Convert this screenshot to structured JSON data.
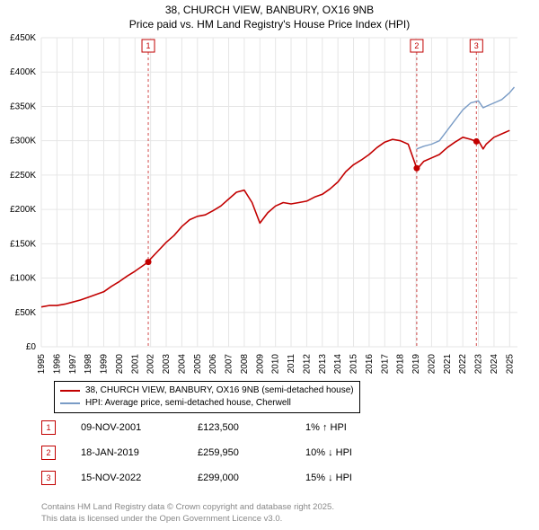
{
  "title": {
    "line1": "38, CHURCH VIEW, BANBURY, OX16 9NB",
    "line2": "Price paid vs. HM Land Registry's House Price Index (HPI)"
  },
  "chart": {
    "type": "line",
    "background_color": "#ffffff",
    "grid_color": "#e6e6e6",
    "axis_color": "#000000",
    "tick_fontsize": 10,
    "xlim": [
      1995,
      2025.5
    ],
    "ylim": [
      0,
      450000
    ],
    "ytick_step": 50000,
    "yticks": [
      "£0",
      "£50K",
      "£100K",
      "£150K",
      "£200K",
      "£250K",
      "£300K",
      "£350K",
      "£400K",
      "£450K"
    ],
    "xticks": [
      1995,
      1996,
      1997,
      1998,
      1999,
      2000,
      2001,
      2002,
      2003,
      2004,
      2005,
      2006,
      2007,
      2008,
      2009,
      2010,
      2011,
      2012,
      2013,
      2014,
      2015,
      2016,
      2017,
      2018,
      2019,
      2020,
      2021,
      2022,
      2023,
      2024,
      2025
    ],
    "series": {
      "property": {
        "label": "38, CHURCH VIEW, BANBURY, OX16 9NB (semi-detached house)",
        "color": "#c20000",
        "line_width": 1.6,
        "data": [
          [
            1995,
            58000
          ],
          [
            1995.5,
            60000
          ],
          [
            1996,
            60000
          ],
          [
            1996.5,
            62000
          ],
          [
            1997,
            65000
          ],
          [
            1997.5,
            68000
          ],
          [
            1998,
            72000
          ],
          [
            1998.5,
            76000
          ],
          [
            1999,
            80000
          ],
          [
            1999.5,
            88000
          ],
          [
            2000,
            95000
          ],
          [
            2000.5,
            103000
          ],
          [
            2001,
            110000
          ],
          [
            2001.85,
            123500
          ],
          [
            2002,
            128000
          ],
          [
            2002.5,
            140000
          ],
          [
            2003,
            152000
          ],
          [
            2003.5,
            162000
          ],
          [
            2004,
            175000
          ],
          [
            2004.5,
            185000
          ],
          [
            2005,
            190000
          ],
          [
            2005.5,
            192000
          ],
          [
            2006,
            198000
          ],
          [
            2006.5,
            205000
          ],
          [
            2007,
            215000
          ],
          [
            2007.5,
            225000
          ],
          [
            2008,
            228000
          ],
          [
            2008.5,
            210000
          ],
          [
            2009,
            180000
          ],
          [
            2009.5,
            195000
          ],
          [
            2010,
            205000
          ],
          [
            2010.5,
            210000
          ],
          [
            2011,
            208000
          ],
          [
            2011.5,
            210000
          ],
          [
            2012,
            212000
          ],
          [
            2012.5,
            218000
          ],
          [
            2013,
            222000
          ],
          [
            2013.5,
            230000
          ],
          [
            2014,
            240000
          ],
          [
            2014.5,
            255000
          ],
          [
            2015,
            265000
          ],
          [
            2015.5,
            272000
          ],
          [
            2016,
            280000
          ],
          [
            2016.5,
            290000
          ],
          [
            2017,
            298000
          ],
          [
            2017.5,
            302000
          ],
          [
            2018,
            300000
          ],
          [
            2018.5,
            295000
          ],
          [
            2019.05,
            259950
          ],
          [
            2019.2,
            262000
          ],
          [
            2019.5,
            270000
          ],
          [
            2020,
            275000
          ],
          [
            2020.5,
            280000
          ],
          [
            2021,
            290000
          ],
          [
            2021.5,
            298000
          ],
          [
            2022,
            305000
          ],
          [
            2022.5,
            302000
          ],
          [
            2022.87,
            299000
          ],
          [
            2023,
            300000
          ],
          [
            2023.3,
            288000
          ],
          [
            2023.5,
            295000
          ],
          [
            2024,
            305000
          ],
          [
            2024.5,
            310000
          ],
          [
            2025,
            315000
          ]
        ]
      },
      "hpi": {
        "label": "HPI: Average price, semi-detached house, Cherwell",
        "color": "#7a9cc6",
        "line_width": 1.4,
        "data": [
          [
            2019.05,
            288000
          ],
          [
            2019.5,
            292000
          ],
          [
            2020,
            295000
          ],
          [
            2020.5,
            300000
          ],
          [
            2021,
            315000
          ],
          [
            2021.5,
            330000
          ],
          [
            2022,
            345000
          ],
          [
            2022.5,
            355000
          ],
          [
            2023,
            358000
          ],
          [
            2023.3,
            348000
          ],
          [
            2023.5,
            350000
          ],
          [
            2024,
            355000
          ],
          [
            2024.5,
            360000
          ],
          [
            2025,
            370000
          ],
          [
            2025.3,
            378000
          ]
        ]
      }
    },
    "sale_markers": [
      {
        "n": "1",
        "year": 2001.85,
        "price": 123500,
        "color": "#c20000"
      },
      {
        "n": "2",
        "year": 2019.05,
        "price": 259950,
        "color": "#c20000"
      },
      {
        "n": "3",
        "year": 2022.87,
        "price": 299000,
        "color": "#c20000"
      }
    ],
    "marker_line_color": "#c20000",
    "marker_line_dash": "3,3"
  },
  "legend": {
    "items": [
      {
        "color": "#c20000",
        "label": "38, CHURCH VIEW, BANBURY, OX16 9NB (semi-detached house)"
      },
      {
        "color": "#7a9cc6",
        "label": "HPI: Average price, semi-detached house, Cherwell"
      }
    ]
  },
  "sales": [
    {
      "n": "1",
      "date": "09-NOV-2001",
      "price": "£123,500",
      "diff": "1% ↑ HPI",
      "color": "#c20000"
    },
    {
      "n": "2",
      "date": "18-JAN-2019",
      "price": "£259,950",
      "diff": "10% ↓ HPI",
      "color": "#c20000"
    },
    {
      "n": "3",
      "date": "15-NOV-2022",
      "price": "£299,000",
      "diff": "15% ↓ HPI",
      "color": "#c20000"
    }
  ],
  "attribution": {
    "line1": "Contains HM Land Registry data © Crown copyright and database right 2025.",
    "line2": "This data is licensed under the Open Government Licence v3.0."
  }
}
